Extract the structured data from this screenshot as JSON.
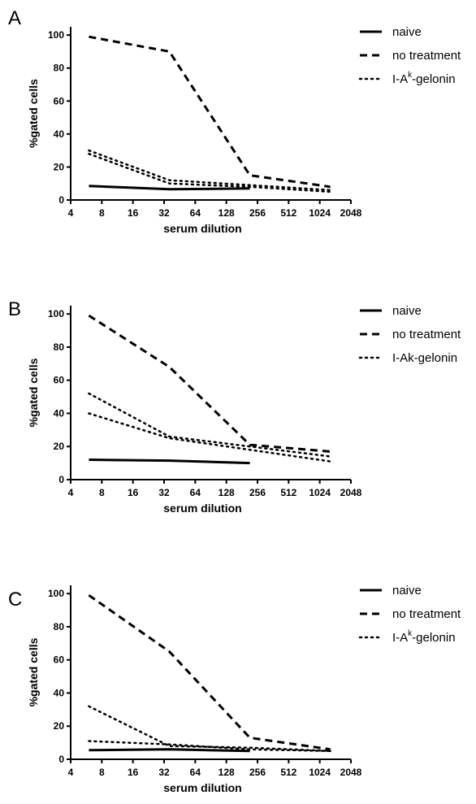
{
  "chart_data": [
    {
      "panel": "A",
      "type": "line",
      "xscale": "log2",
      "xlabel": "serum dilution",
      "ylabel": "%gated cells",
      "xticks": [
        4,
        8,
        16,
        32,
        64,
        128,
        256,
        512,
        1024,
        2048
      ],
      "yticks": [
        0,
        20,
        40,
        60,
        80,
        100
      ],
      "xlim": [
        4,
        2048
      ],
      "ylim": [
        0,
        105
      ],
      "legend_position": "right",
      "series": [
        {
          "name": "naive",
          "style": "solid",
          "x": [
            6,
            36,
            216
          ],
          "y": [
            8.5,
            6.5,
            7
          ]
        },
        {
          "name": "no treatment",
          "style": "dashed",
          "x": [
            6,
            36,
            216,
            1296
          ],
          "y": [
            99,
            90,
            15,
            8
          ]
        },
        {
          "name": "I-A",
          "name_sup": "k",
          "name_suffix": "-gelonin",
          "style": "dotted",
          "x": [
            6,
            36,
            216,
            1296
          ],
          "y": [
            30,
            12,
            9,
            6
          ]
        },
        {
          "name": "",
          "style": "dotted",
          "x": [
            6,
            36,
            216,
            1296
          ],
          "y": [
            28,
            10,
            8,
            5
          ]
        }
      ]
    },
    {
      "panel": "B",
      "type": "line",
      "xscale": "log2",
      "xlabel": "serum dilution",
      "ylabel": "%gated cells",
      "xticks": [
        4,
        8,
        16,
        32,
        64,
        128,
        256,
        512,
        1024,
        2048
      ],
      "yticks": [
        0,
        20,
        40,
        60,
        80,
        100
      ],
      "xlim": [
        4,
        2048
      ],
      "ylim": [
        0,
        105
      ],
      "legend_position": "right",
      "series": [
        {
          "name": "naive",
          "style": "solid",
          "x": [
            6,
            36,
            216
          ],
          "y": [
            12,
            11.5,
            10
          ]
        },
        {
          "name": "no treatment",
          "style": "dashed",
          "x": [
            6,
            36,
            216,
            1296
          ],
          "y": [
            99,
            68,
            21,
            17
          ]
        },
        {
          "name": "I-Ak-gelonin",
          "style": "dotted",
          "x": [
            6,
            36,
            216,
            1296
          ],
          "y": [
            52,
            26,
            20,
            14
          ]
        },
        {
          "name": "",
          "style": "dotted",
          "x": [
            6,
            36,
            216,
            1296
          ],
          "y": [
            40,
            25,
            18,
            11
          ]
        }
      ]
    },
    {
      "panel": "C",
      "type": "line",
      "xscale": "log2",
      "xlabel": "serum dilution",
      "ylabel": "%gated cells",
      "xticks": [
        4,
        8,
        16,
        32,
        64,
        128,
        256,
        512,
        1024,
        2048
      ],
      "yticks": [
        0,
        20,
        40,
        60,
        80,
        100
      ],
      "xlim": [
        4,
        2048
      ],
      "ylim": [
        0,
        105
      ],
      "legend_position": "right",
      "series": [
        {
          "name": "naive",
          "style": "solid",
          "x": [
            6,
            36,
            216
          ],
          "y": [
            5.5,
            6,
            5
          ]
        },
        {
          "name": "no treatment",
          "style": "dashed",
          "x": [
            6,
            36,
            216,
            1296
          ],
          "y": [
            99,
            65,
            13,
            6
          ]
        },
        {
          "name": "I-A",
          "name_sup": "k",
          "name_suffix": "-gelonin",
          "style": "dotted",
          "x": [
            6,
            36,
            216,
            1296
          ],
          "y": [
            32,
            8,
            7,
            5
          ]
        },
        {
          "name": "",
          "style": "dotted",
          "x": [
            6,
            36,
            216,
            1296
          ],
          "y": [
            11,
            9,
            6,
            5
          ]
        }
      ]
    }
  ]
}
